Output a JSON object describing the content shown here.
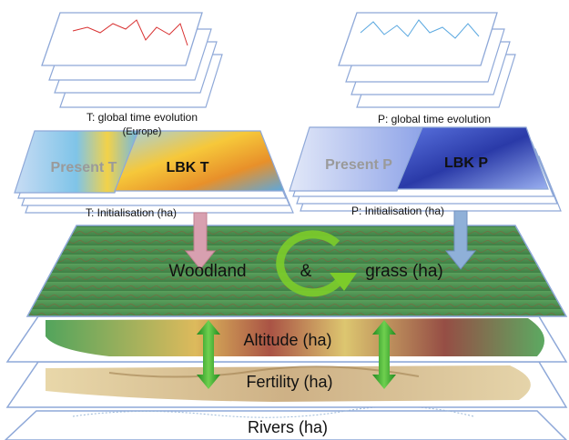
{
  "labels": {
    "t_time": "T: global time evolution",
    "t_time_sub": "(Europe)",
    "p_time": "P: global time evolution",
    "present_t": "Present T",
    "lbk_t": "LBK T",
    "present_p": "Present P",
    "lbk_p": "LBK P",
    "t_init": "T: Initialisation (ha)",
    "p_init": "P: Initialisation (ha)",
    "woodland": "Woodland",
    "ampersand": "&",
    "grass": "grass (ha)",
    "altitude": "Altitude (ha)",
    "fertility": "Fertility (ha)",
    "rivers": "Rivers (ha)"
  },
  "colors": {
    "layer_edge": "#8ea8d8",
    "grass": "#4d8a4f",
    "arrow_green": "#2e9e2e",
    "arrow_t": "#d8a0b0",
    "arrow_p": "#8fb0d8",
    "cycle": "#7ccc2a"
  }
}
